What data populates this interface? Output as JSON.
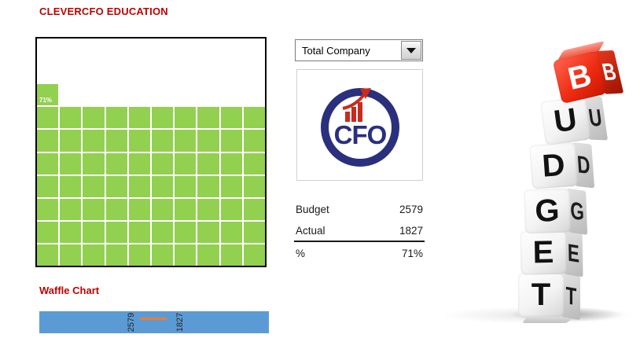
{
  "header": {
    "title": "CLEVERCFO EDUCATION"
  },
  "controls": {
    "dropdown": {
      "value": "Total Company",
      "icon": "caret-down-icon"
    }
  },
  "logo": {
    "text": "CFO",
    "navy": "#2A2F7E",
    "red": "#CB2A1E"
  },
  "summary": {
    "rows": [
      {
        "label": "Budget",
        "value": "2579"
      },
      {
        "label": "Actual",
        "value": "1827"
      },
      {
        "label": "%",
        "value": "71%"
      }
    ]
  },
  "waffle": {
    "section_label": "Waffle Chart",
    "percent_label": "71%",
    "fill_color": "#92D050"
  },
  "hbar": {
    "budget_label": "2579",
    "actual_label": "1827",
    "bar_color": "#5B9BD5",
    "marker_color": "#ED7D31"
  },
  "dice": {
    "letters": [
      "B",
      "U",
      "D",
      "G",
      "E",
      "T"
    ]
  },
  "chart_data": [
    {
      "type": "heatmap",
      "subtype": "waffle",
      "title": "Waffle Chart",
      "grid": [
        10,
        10
      ],
      "filled_cells": 71,
      "percent": 71,
      "budget": 2579,
      "actual": 1827,
      "fill_color": "#92D050",
      "empty_color": "#FFFFFF",
      "annotation": "71%"
    },
    {
      "type": "bar",
      "orientation": "horizontal",
      "categories": [
        "Total Company"
      ],
      "series": [
        {
          "name": "Budget",
          "values": [
            2579
          ]
        },
        {
          "name": "Actual",
          "values": [
            1827
          ]
        }
      ],
      "bar_color": "#5B9BD5",
      "marker_color": "#ED7D31",
      "tick_labels": [
        "2579",
        "1827"
      ]
    }
  ]
}
